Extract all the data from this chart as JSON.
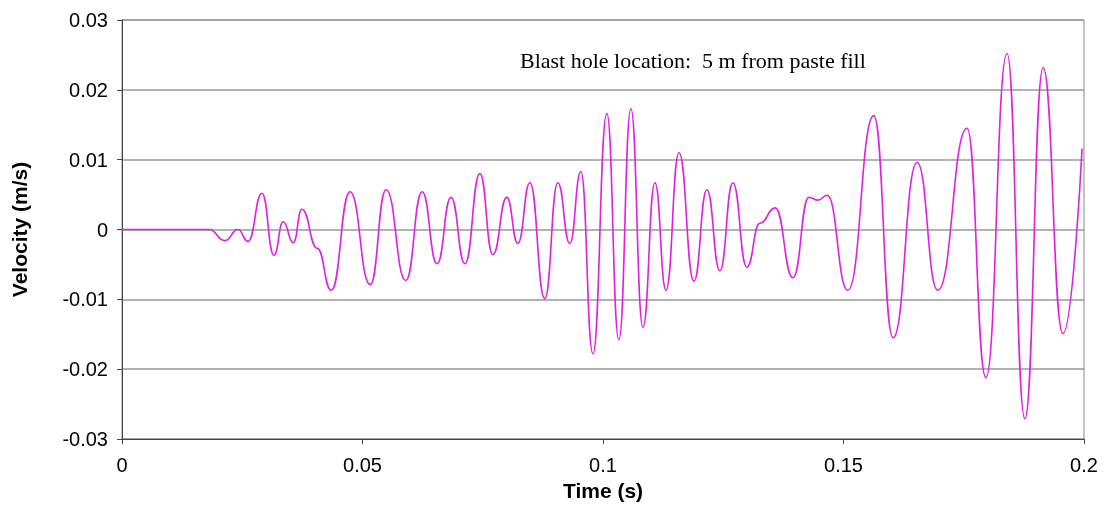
{
  "chart_data": {
    "type": "line",
    "annotations": [
      "Blast hole location:  5 m from paste fill"
    ],
    "xlabel": "Time (s)",
    "ylabel": "Velocity (m/s)",
    "xlim": [
      0,
      0.2
    ],
    "xticks": [
      0,
      0.05,
      0.1,
      0.15,
      0.2
    ],
    "ylim": [
      -0.03,
      0.03
    ],
    "yticks": [
      -0.03,
      -0.02,
      -0.01,
      0,
      0.01,
      0.02,
      0.03
    ],
    "grid": "y",
    "marker": "none",
    "line_style": "solid",
    "series": [
      {
        "color": "#e020e0",
        "x": [
          0,
          0.0181,
          0.0214,
          0.0241,
          0.0262,
          0.0291,
          0.0316,
          0.0335,
          0.0356,
          0.0374,
          0.0406,
          0.0435,
          0.0474,
          0.0516,
          0.0549,
          0.059,
          0.0624,
          0.0655,
          0.0684,
          0.0713,
          0.0744,
          0.0771,
          0.08,
          0.0823,
          0.0848,
          0.0879,
          0.0906,
          0.0931,
          0.0954,
          0.0979,
          0.1008,
          0.1033,
          0.1058,
          0.1083,
          0.1108,
          0.1131,
          0.1158,
          0.1189,
          0.1216,
          0.1243,
          0.127,
          0.1299,
          0.1326,
          0.1358,
          0.1395,
          0.1428,
          0.1447,
          0.1466,
          0.1509,
          0.1563,
          0.1603,
          0.1653,
          0.1696,
          0.1757,
          0.1796,
          0.184,
          0.1877,
          0.1915,
          0.1956,
          0.1996
        ],
        "values": [
          0,
          0,
          -0.0016,
          0,
          -0.0017,
          0.0052,
          -0.0037,
          0.0011,
          -0.0019,
          0.0029,
          -0.0027,
          -0.0087,
          0.0054,
          -0.0079,
          0.0057,
          -0.0073,
          0.0054,
          -0.0049,
          0.0046,
          -0.0049,
          0.008,
          -0.0036,
          0.0046,
          -0.002,
          0.0067,
          -0.0099,
          0.0067,
          -0.002,
          0.0083,
          -0.0178,
          0.0166,
          -0.0158,
          0.0173,
          -0.014,
          0.0067,
          -0.0087,
          0.011,
          -0.0074,
          0.0057,
          -0.0059,
          0.0067,
          -0.0054,
          0.0009,
          0.0031,
          -0.0069,
          0.0046,
          0.0042,
          0.0049,
          -0.0087,
          0.0163,
          -0.0155,
          0.0096,
          -0.0087,
          0.0145,
          -0.0212,
          0.0252,
          -0.0271,
          0.0232,
          -0.0149,
          0.0116
        ]
      }
    ]
  }
}
